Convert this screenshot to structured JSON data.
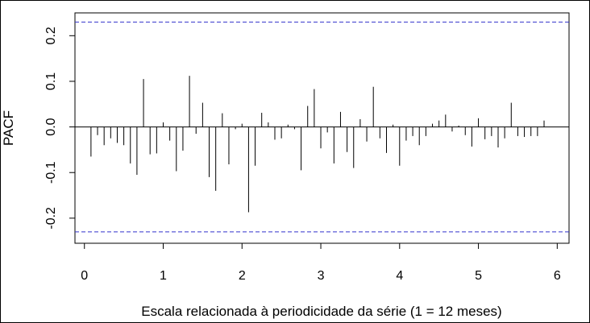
{
  "chart_data": {
    "type": "bar",
    "subtype": "pacf-spikes",
    "title": "",
    "xlabel": "Escala relacionada à periodicidade da série (1 = 12 meses)",
    "ylabel": "PACF",
    "xlim": [
      -0.12,
      6.15
    ],
    "ylim": [
      -0.255,
      0.25
    ],
    "x_ticks": [
      "0",
      "1",
      "2",
      "3",
      "4",
      "5",
      "6"
    ],
    "y_ticks": [
      "-0.2",
      "-0.1",
      "0.0",
      "0.1",
      "0.2"
    ],
    "confidence_limits": [
      0.23,
      -0.23
    ],
    "lag_step": 0.08333,
    "values": [
      -0.065,
      -0.018,
      -0.04,
      -0.025,
      -0.035,
      -0.04,
      -0.08,
      -0.105,
      0.105,
      -0.06,
      -0.058,
      0.01,
      -0.03,
      -0.097,
      -0.052,
      0.112,
      -0.015,
      0.053,
      -0.11,
      -0.14,
      0.03,
      -0.082,
      -0.005,
      0.007,
      -0.187,
      -0.085,
      0.031,
      0.01,
      -0.028,
      -0.025,
      0.005,
      -0.005,
      -0.095,
      0.046,
      0.083,
      -0.047,
      -0.012,
      -0.08,
      0.033,
      -0.055,
      -0.09,
      0.017,
      -0.032,
      0.088,
      -0.025,
      -0.057,
      0.005,
      -0.085,
      -0.03,
      -0.02,
      -0.04,
      -0.02,
      0.007,
      0.014,
      0.027,
      -0.01,
      0.003,
      -0.018,
      -0.043,
      0.019,
      -0.027,
      -0.02,
      -0.045,
      -0.025,
      0.053,
      -0.02,
      -0.022,
      -0.02,
      -0.02,
      0.014
    ],
    "colors": {
      "spike": "#000000",
      "limit": "#3333cc",
      "zero": "#000000"
    },
    "grid": false,
    "legend": "none"
  }
}
